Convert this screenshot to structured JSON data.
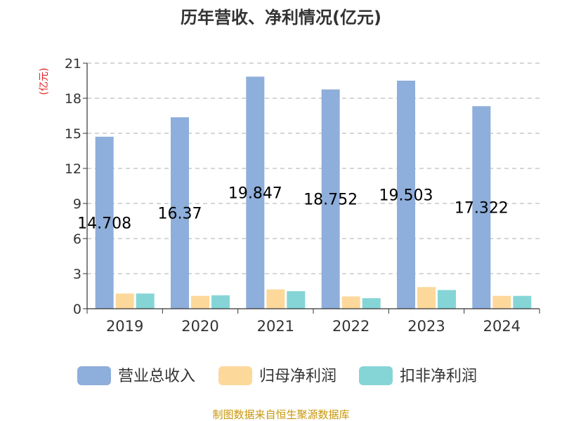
{
  "chart_data": {
    "type": "bar",
    "title": "历年营收、净利情况(亿元)",
    "ylabel": "(亿元)",
    "xlabel": "",
    "ylim": [
      0,
      21
    ],
    "yticks": [
      0,
      3,
      6,
      9,
      12,
      15,
      18,
      21
    ],
    "categories": [
      "2019",
      "2020",
      "2021",
      "2022",
      "2023",
      "2024"
    ],
    "series": [
      {
        "name": "营业总收入",
        "color": "#8eaedb",
        "values": [
          14.708,
          16.37,
          19.847,
          18.752,
          19.503,
          17.322
        ],
        "show_labels": true
      },
      {
        "name": "归母净利润",
        "color": "#fdd89b",
        "values": [
          1.3,
          1.1,
          1.65,
          1.05,
          1.85,
          1.1
        ],
        "show_labels": false
      },
      {
        "name": "扣非净利润",
        "color": "#86d5d6",
        "values": [
          1.3,
          1.15,
          1.5,
          0.9,
          1.6,
          1.1
        ],
        "show_labels": false
      }
    ],
    "grid": true,
    "legend_position": "bottom"
  },
  "source_note": "制图数据来自恒生聚源数据库"
}
